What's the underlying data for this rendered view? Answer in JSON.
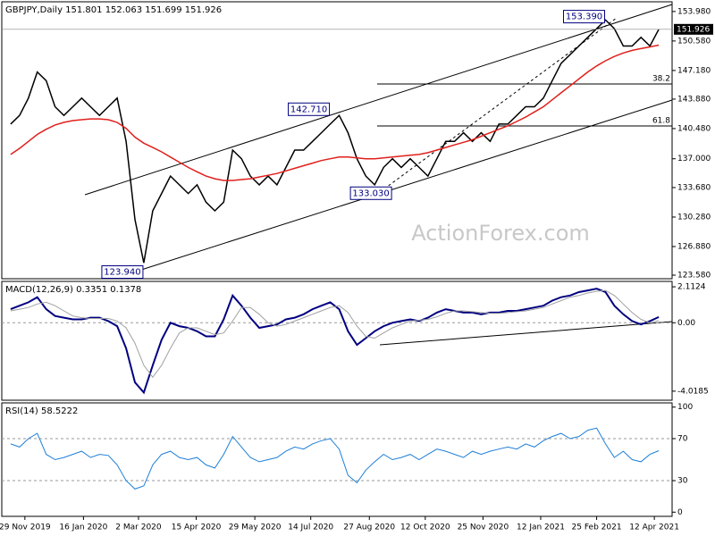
{
  "chart_data": [
    {
      "type": "line",
      "title": "GBPJPY,Daily  151.801 152.063 151.699 151.926",
      "watermark": "ActionForex.com",
      "xlim": [
        -1,
        74.5
      ],
      "x": [
        0,
        1,
        2,
        3,
        4,
        5,
        6,
        7,
        8,
        9,
        10,
        11,
        12,
        13,
        14,
        15,
        16,
        17,
        18,
        19,
        20,
        21,
        22,
        23,
        24,
        25,
        26,
        27,
        28,
        29,
        30,
        31,
        32,
        33,
        34,
        35,
        36,
        37,
        38,
        39,
        40,
        41,
        42,
        43,
        44,
        45,
        46,
        47,
        48,
        49,
        50,
        51,
        52,
        53,
        54,
        55,
        56,
        57,
        58,
        59,
        60,
        61,
        62,
        63,
        64,
        65,
        66,
        67,
        68,
        69,
        70,
        71,
        72,
        73
      ],
      "ylim": [
        123.17,
        155.1
      ],
      "yticks": [
        {
          "value": 123.58,
          "label": "123.580"
        },
        {
          "value": 126.88,
          "label": "126.880"
        },
        {
          "value": 130.28,
          "label": "130.280"
        },
        {
          "value": 133.68,
          "label": "133.680"
        },
        {
          "value": 137.0,
          "label": "137.000"
        },
        {
          "value": 140.48,
          "label": "140.480"
        },
        {
          "value": 143.88,
          "label": "143.880"
        },
        {
          "value": 147.18,
          "label": "147.180"
        },
        {
          "value": 150.58,
          "label": "150.580"
        },
        {
          "value": 153.98,
          "label": "153.980"
        }
      ],
      "tick_lines": false,
      "last_price": {
        "value": 151.926,
        "label": "151.926"
      },
      "annotations": [
        {
          "x": 67,
          "value": 153.39,
          "label": "153.390"
        },
        {
          "x": 36,
          "value": 142.71,
          "label": "142.710"
        },
        {
          "x": 43,
          "value": 133.03,
          "label": "133.030"
        },
        {
          "x": 15,
          "value": 123.94,
          "label": "123.940"
        }
      ],
      "fib_levels": [
        38.2,
        61.8
      ],
      "series": [
        {
          "name": "GBPJPY",
          "color": "#000000",
          "values": [
            141,
            142,
            144,
            147,
            146,
            143,
            142,
            143,
            144,
            143,
            142,
            143,
            144,
            139,
            130,
            125,
            131,
            133,
            135,
            134,
            133,
            134,
            132,
            131,
            132,
            138,
            137,
            135,
            134,
            135,
            134,
            136,
            138,
            138,
            139,
            140,
            141,
            142,
            140,
            137,
            135,
            134,
            136,
            137,
            136,
            137,
            136,
            135,
            137,
            139,
            139,
            140,
            139,
            140,
            139,
            141,
            141,
            142,
            143,
            143,
            144,
            146,
            148,
            149,
            150,
            151,
            152,
            153,
            152,
            150,
            150,
            151,
            150,
            151.926
          ]
        },
        {
          "name": "MA",
          "color": "#e0201c",
          "values": [
            137.5,
            138.2,
            139,
            139.8,
            140.4,
            140.9,
            141.2,
            141.4,
            141.5,
            141.6,
            141.6,
            141.5,
            141.2,
            140.5,
            139.5,
            138.8,
            138.3,
            137.8,
            137.2,
            136.6,
            136.0,
            135.5,
            135.0,
            134.7,
            134.5,
            134.5,
            134.6,
            134.7,
            134.9,
            135.1,
            135.3,
            135.6,
            135.9,
            136.2,
            136.5,
            136.8,
            137.0,
            137.2,
            137.2,
            137.1,
            137.0,
            137.0,
            137.1,
            137.2,
            137.3,
            137.4,
            137.5,
            137.7,
            138.0,
            138.3,
            138.6,
            138.9,
            139.2,
            139.6,
            140.0,
            140.4,
            140.8,
            141.3,
            141.8,
            142.4,
            143.0,
            143.8,
            144.6,
            145.4,
            146.2,
            147.0,
            147.7,
            148.3,
            148.8,
            149.2,
            149.5,
            149.7,
            149.9,
            150.1
          ]
        }
      ]
    },
    {
      "type": "line",
      "title": "MACD(12,26,9) 0.3351 0.1378",
      "ylim": [
        -4.55,
        2.43
      ],
      "yticks": [
        {
          "value": -4.0185,
          "label": "-4.0185"
        },
        {
          "value": 0,
          "label": "0.00"
        },
        2.1124
      ],
      "tick_lines": true,
      "series": [
        {
          "name": "MACD",
          "color": "#000080",
          "width": 2,
          "values": [
            0.8,
            1.0,
            1.2,
            1.5,
            0.8,
            0.4,
            0.3,
            0.2,
            0.2,
            0.3,
            0.3,
            0.1,
            -0.2,
            -1.5,
            -3.5,
            -4.1,
            -2.5,
            -1.0,
            0.0,
            -0.2,
            -0.3,
            -0.5,
            -0.8,
            -0.8,
            0.2,
            1.6,
            1.0,
            0.3,
            -0.3,
            -0.2,
            -0.1,
            0.2,
            0.3,
            0.5,
            0.8,
            1.0,
            1.2,
            0.8,
            -0.5,
            -1.3,
            -0.9,
            -0.5,
            -0.2,
            0.0,
            0.1,
            0.2,
            0.1,
            0.3,
            0.6,
            0.8,
            0.7,
            0.6,
            0.6,
            0.5,
            0.6,
            0.6,
            0.7,
            0.7,
            0.8,
            0.9,
            1.0,
            1.3,
            1.5,
            1.6,
            1.8,
            1.9,
            2.0,
            1.8,
            1.0,
            0.5,
            0.1,
            -0.1,
            0.1,
            0.3351
          ]
        },
        {
          "name": "Signal",
          "color": "#a0a0a0",
          "width": 1,
          "values": [
            0.7,
            0.8,
            0.9,
            1.1,
            1.2,
            1.0,
            0.7,
            0.4,
            0.3,
            0.25,
            0.25,
            0.25,
            0.1,
            -0.3,
            -1.2,
            -2.5,
            -3.2,
            -2.5,
            -1.5,
            -0.6,
            -0.3,
            -0.3,
            -0.5,
            -0.7,
            -0.6,
            0.1,
            0.9,
            0.9,
            0.5,
            0.0,
            -0.2,
            -0.1,
            0.1,
            0.3,
            0.5,
            0.7,
            0.9,
            1.0,
            0.6,
            -0.2,
            -0.8,
            -0.9,
            -0.6,
            -0.3,
            -0.1,
            0.1,
            0.15,
            0.2,
            0.35,
            0.55,
            0.7,
            0.7,
            0.65,
            0.6,
            0.55,
            0.55,
            0.6,
            0.65,
            0.7,
            0.8,
            0.9,
            1.1,
            1.3,
            1.5,
            1.6,
            1.75,
            1.85,
            1.9,
            1.6,
            1.1,
            0.6,
            0.2,
            0.0,
            0.1378
          ]
        }
      ]
    },
    {
      "type": "line",
      "title": "RSI(14) 58.5222",
      "ylim": [
        -4,
        104
      ],
      "yticks": [
        0,
        30,
        70,
        100
      ],
      "tick_lines": true,
      "xticks": [
        {
          "value": 1.6,
          "label": "29 Nov 2019"
        },
        {
          "value": 8.2,
          "label": "16 Jan 2020"
        },
        {
          "value": 14.4,
          "label": "2 Mar 2020"
        },
        {
          "value": 20.9,
          "label": "15 Apr 2020"
        },
        {
          "value": 27.5,
          "label": "29 May 2020"
        },
        {
          "value": 33.8,
          "label": "14 Jul 2020"
        },
        {
          "value": 40.4,
          "label": "27 Aug 2020"
        },
        {
          "value": 46.7,
          "label": "12 Oct 2020"
        },
        {
          "value": 53.2,
          "label": "25 Nov 2020"
        },
        {
          "value": 59.7,
          "label": "12 Jan 2021"
        },
        {
          "value": 66.0,
          "label": "25 Feb 2021"
        },
        {
          "value": 72.5,
          "label": "12 Apr 2021"
        }
      ],
      "series": [
        {
          "name": "RSI",
          "color": "#1e7fd8",
          "width": 1,
          "values": [
            65,
            62,
            70,
            75,
            55,
            50,
            52,
            55,
            58,
            52,
            55,
            54,
            45,
            30,
            22,
            25,
            45,
            55,
            58,
            52,
            50,
            52,
            45,
            42,
            55,
            72,
            62,
            52,
            48,
            50,
            52,
            58,
            62,
            60,
            65,
            68,
            70,
            60,
            35,
            28,
            40,
            48,
            55,
            50,
            52,
            55,
            50,
            55,
            60,
            58,
            55,
            52,
            58,
            55,
            58,
            60,
            62,
            60,
            65,
            62,
            68,
            72,
            75,
            70,
            72,
            78,
            80,
            65,
            52,
            58,
            50,
            48,
            55,
            58.5222
          ]
        }
      ]
    }
  ]
}
